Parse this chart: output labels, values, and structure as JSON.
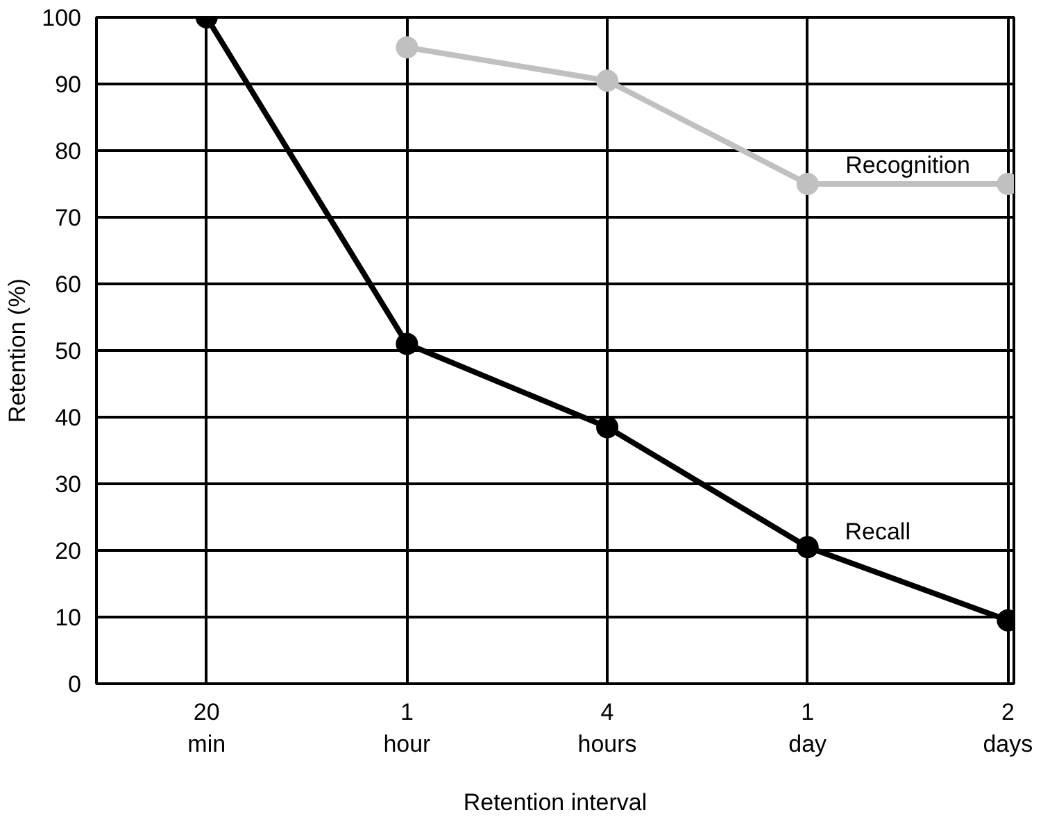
{
  "chart_data": {
    "type": "line",
    "xlabel": "Retention interval",
    "ylabel": "Retention (%)",
    "categories": [
      "20\nmin",
      "1\nhour",
      "4\nhours",
      "1\nday",
      "2\ndays"
    ],
    "series": [
      {
        "name": "Recognition",
        "color": "#c0c0c0",
        "values": [
          null,
          95.5,
          90.5,
          75,
          75
        ]
      },
      {
        "name": "Recall",
        "color": "#000000",
        "values": [
          100,
          51,
          38.5,
          20.5,
          9.5
        ]
      }
    ],
    "ylim": [
      0,
      100
    ],
    "yticks": [
      0,
      10,
      20,
      30,
      40,
      50,
      60,
      70,
      80,
      90,
      100
    ],
    "grid": true,
    "marker": "circle",
    "line_style": "solid"
  }
}
